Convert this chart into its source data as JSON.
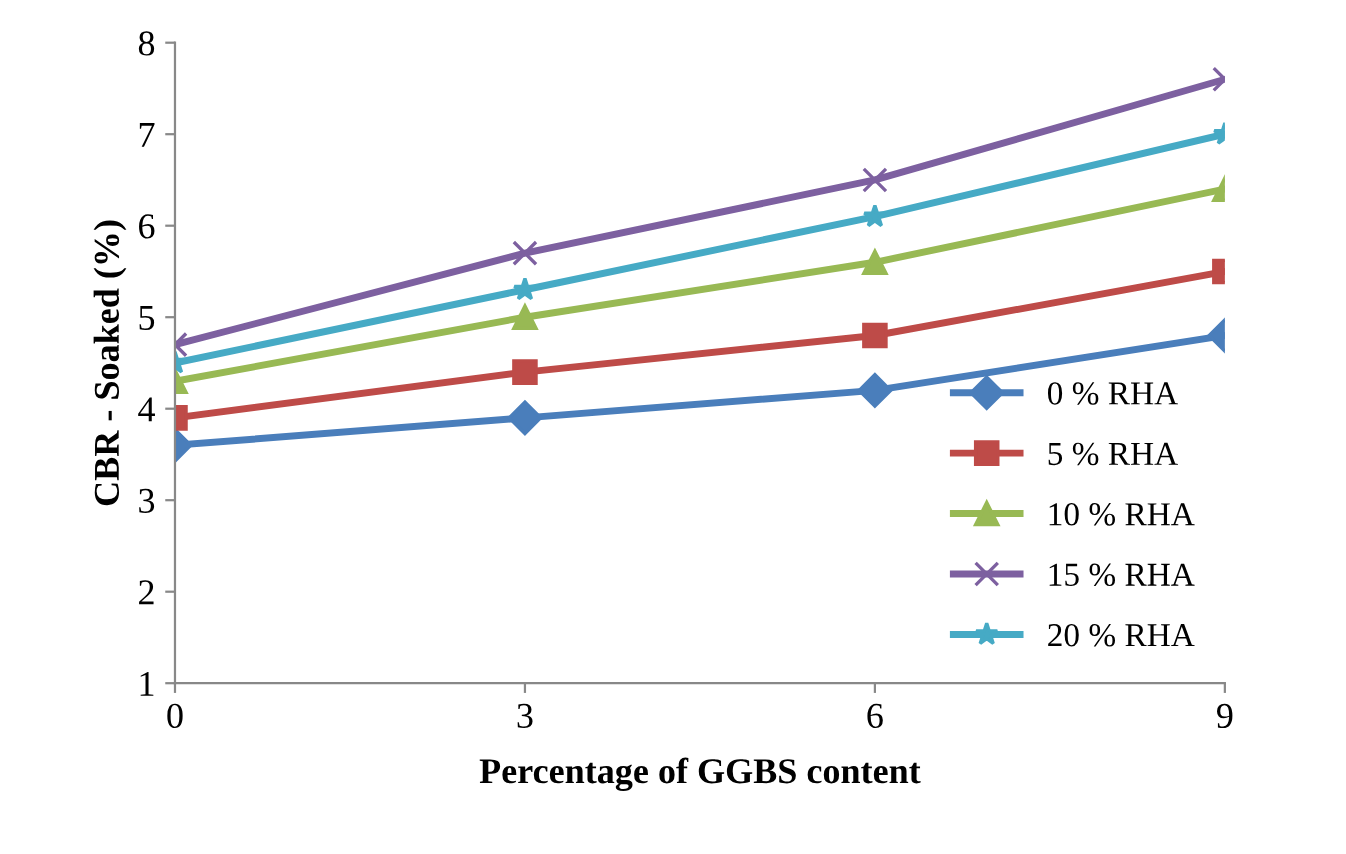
{
  "chart_data": {
    "type": "line",
    "xlabel": "Percentage of GGBS content",
    "ylabel": "CBR - Soaked (%)",
    "x": [
      0,
      3,
      6,
      9
    ],
    "series": [
      {
        "name": "0 % RHA",
        "color": "#4a7ebb",
        "marker": "diamond",
        "values": [
          3.6,
          3.9,
          4.2,
          4.8
        ]
      },
      {
        "name": "5 % RHA",
        "color": "#be4b48",
        "marker": "square",
        "values": [
          3.9,
          4.4,
          4.8,
          5.5
        ]
      },
      {
        "name": "10 % RHA",
        "color": "#98b954",
        "marker": "triangle",
        "values": [
          4.3,
          5.0,
          5.6,
          6.4
        ]
      },
      {
        "name": "15 % RHA",
        "color": "#7d60a0",
        "marker": "cross",
        "values": [
          4.7,
          5.7,
          6.5,
          7.6
        ]
      },
      {
        "name": "20 % RHA",
        "color": "#46aac5",
        "marker": "star",
        "values": [
          4.5,
          5.3,
          6.1,
          7.0
        ]
      }
    ],
    "xlim": [
      0,
      9
    ],
    "xticks": [
      0,
      3,
      6,
      9
    ],
    "ylim": [
      1,
      8
    ],
    "yticks": [
      1,
      2,
      3,
      4,
      5,
      6,
      7,
      8
    ],
    "grid": false,
    "legend": "bottom right",
    "line_style": "solid"
  }
}
